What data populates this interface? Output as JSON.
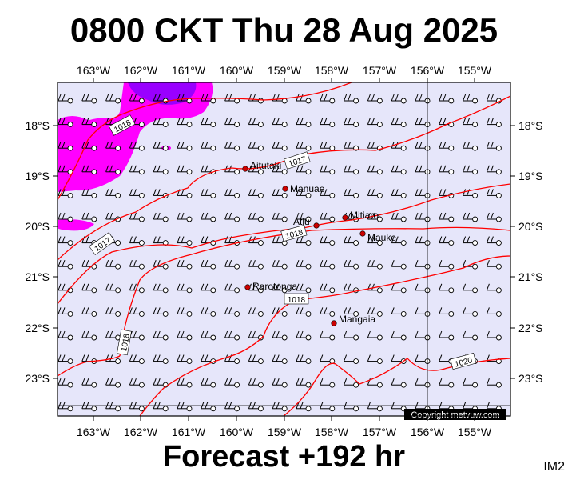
{
  "header": {
    "title": "0800 CKT Thu 28 Aug 2025"
  },
  "footer": {
    "forecast": "Forecast +192 hr",
    "code": "IM2"
  },
  "map": {
    "colors": {
      "background": "#e6e6fa",
      "precip": "#ff00ff",
      "precip_heavy": "#9900ff",
      "isobar": "#ff0000",
      "island": "#cc0000"
    },
    "lon_labels": [
      "163°W",
      "162°W",
      "161°W",
      "160°W",
      "159°W",
      "158°W",
      "157°W",
      "156°W",
      "155°W"
    ],
    "lat_labels": [
      "18°S",
      "19°S",
      "20°S",
      "21°S",
      "22°S",
      "23°S"
    ],
    "islands": [
      "Aitutaki",
      "Manuae",
      "Mitiaro",
      "Atiu",
      "Mauke",
      "Rarotonga",
      "Mangaia"
    ],
    "isobar_labels": [
      "1018",
      "1017",
      "1017",
      "1018",
      "1018",
      "1018",
      "1020"
    ],
    "copyright": "Copyright metvuw.com"
  }
}
